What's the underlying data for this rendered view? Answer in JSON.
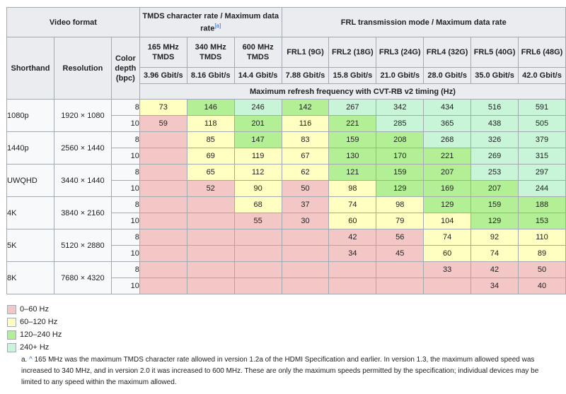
{
  "headers": {
    "video_format": "Video format",
    "tmds_group": "TMDS character rate / Maximum data rate",
    "tmds_ref": "[a]",
    "frl_group": "FRL transmission mode / Maximum data rate",
    "shorthand": "Shorthand",
    "resolution": "Resolution",
    "color_depth": "Color depth (bpc)",
    "max_refresh": "Maximum refresh frequency with CVT-RB v2 timing (Hz)",
    "columns": [
      {
        "mode": "165 MHz TMDS",
        "rate": "3.96 Gbit/s"
      },
      {
        "mode": "340 MHz TMDS",
        "rate": "8.16 Gbit/s"
      },
      {
        "mode": "600 MHz TMDS",
        "rate": "14.4 Gbit/s"
      },
      {
        "mode": "FRL1 (9G)",
        "rate": "7.88 Gbit/s"
      },
      {
        "mode": "FRL2 (18G)",
        "rate": "15.8 Gbit/s"
      },
      {
        "mode": "FRL3 (24G)",
        "rate": "21.0 Gbit/s"
      },
      {
        "mode": "FRL4 (32G)",
        "rate": "28.0 Gbit/s"
      },
      {
        "mode": "FRL5 (40G)",
        "rate": "35.0 Gbit/s"
      },
      {
        "mode": "FRL6 (48G)",
        "rate": "42.0 Gbit/s"
      }
    ]
  },
  "formats": [
    {
      "shorthand": "1080p",
      "resolution": "1920 × 1080",
      "rows": [
        {
          "depth": "8",
          "values": [
            "73",
            "146",
            "246",
            "142",
            "267",
            "342",
            "434",
            "516",
            "591"
          ]
        },
        {
          "depth": "10",
          "values": [
            "59",
            "118",
            "201",
            "116",
            "221",
            "285",
            "365",
            "438",
            "505"
          ]
        }
      ]
    },
    {
      "shorthand": "1440p",
      "resolution": "2560 × 1440",
      "rows": [
        {
          "depth": "8",
          "values": [
            "",
            "85",
            "147",
            "83",
            "159",
            "208",
            "268",
            "326",
            "379"
          ]
        },
        {
          "depth": "10",
          "values": [
            "",
            "69",
            "119",
            "67",
            "130",
            "170",
            "221",
            "269",
            "315"
          ]
        }
      ]
    },
    {
      "shorthand": "UWQHD",
      "resolution": "3440 × 1440",
      "rows": [
        {
          "depth": "8",
          "values": [
            "",
            "65",
            "112",
            "62",
            "121",
            "159",
            "207",
            "253",
            "297"
          ]
        },
        {
          "depth": "10",
          "values": [
            "",
            "52",
            "90",
            "50",
            "98",
            "129",
            "169",
            "207",
            "244"
          ]
        }
      ]
    },
    {
      "shorthand": "4K",
      "resolution": "3840 × 2160",
      "rows": [
        {
          "depth": "8",
          "values": [
            "",
            "",
            "68",
            "37",
            "74",
            "98",
            "129",
            "159",
            "188"
          ]
        },
        {
          "depth": "10",
          "values": [
            "",
            "",
            "55",
            "30",
            "60",
            "79",
            "104",
            "129",
            "153"
          ]
        }
      ]
    },
    {
      "shorthand": "5K",
      "resolution": "5120 × 2880",
      "rows": [
        {
          "depth": "8",
          "values": [
            "",
            "",
            "",
            "",
            "42",
            "56",
            "74",
            "92",
            "110"
          ]
        },
        {
          "depth": "10",
          "values": [
            "",
            "",
            "",
            "",
            "34",
            "45",
            "60",
            "74",
            "89"
          ]
        }
      ]
    },
    {
      "shorthand": "8K",
      "resolution": "7680 × 4320",
      "rows": [
        {
          "depth": "8",
          "values": [
            "",
            "",
            "",
            "",
            "",
            "",
            "33",
            "42",
            "50"
          ]
        },
        {
          "depth": "10",
          "values": [
            "",
            "",
            "",
            "",
            "",
            "",
            "",
            "34",
            "40"
          ]
        }
      ]
    }
  ],
  "legend": [
    {
      "label": "0–60 Hz",
      "color": "#f4c7c7"
    },
    {
      "label": "60–120 Hz",
      "color": "#ffffc2"
    },
    {
      "label": "120–240 Hz",
      "color": "#b3ef95"
    },
    {
      "label": "240+ Hz",
      "color": "#c8f4d8"
    }
  ],
  "footnote": {
    "marker": "a.",
    "caret": "^",
    "text": "165 MHz was the maximum TMDS character rate allowed in version 1.2a of the HDMI Specification and earlier. In version 1.3, the maximum allowed speed was increased to 340 MHz, and in version 2.0 it was increased to 600 MHz. These are only the maximum speeds permitted by the specification; individual devices may be limited to any speed within the maximum allowed."
  }
}
